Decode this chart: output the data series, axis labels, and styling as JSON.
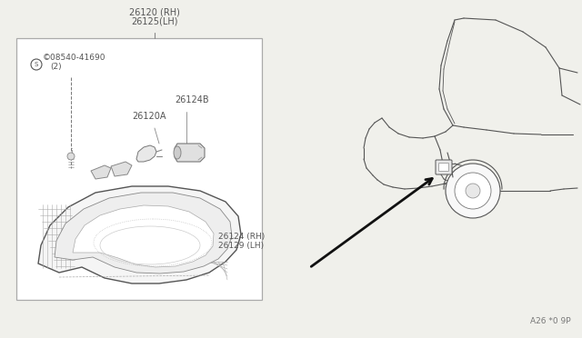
{
  "bg": "#f0f0eb",
  "box_line": "#aaaaaa",
  "draw_line": "#666666",
  "draw_line_dark": "#333333",
  "arrow_color": "#111111",
  "text_color": "#555555",
  "diagram_code": "A26 *0 9P",
  "label_26120": "26120 (RH)",
  "label_26125": "26125(LH)",
  "label_s08540": "©08540-41690",
  "label_2": "(2)",
  "label_26124B": "26124B",
  "label_26120A": "26120A",
  "label_26124": "26124 (RH)",
  "label_26129": "26129 (LH)"
}
